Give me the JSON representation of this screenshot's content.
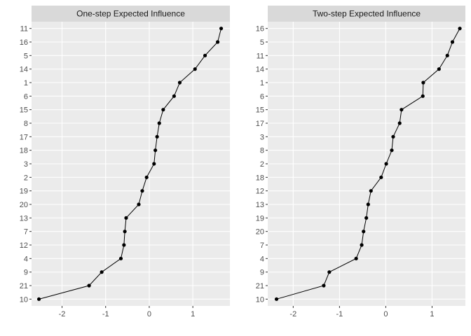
{
  "chart_data": [
    {
      "type": "line",
      "title": "One-step Expected Influence",
      "xlabel": "",
      "ylabel": "",
      "xlim": [
        -2.7,
        1.85
      ],
      "xticks": [
        -2,
        -1,
        0,
        1
      ],
      "grid": true,
      "categories": [
        "11",
        "16",
        "5",
        "14",
        "1",
        "6",
        "15",
        "8",
        "17",
        "18",
        "3",
        "2",
        "19",
        "20",
        "13",
        "7",
        "12",
        "4",
        "9",
        "21",
        "10"
      ],
      "values": [
        1.65,
        1.57,
        1.28,
        1.05,
        0.7,
        0.57,
        0.32,
        0.23,
        0.18,
        0.14,
        0.11,
        -0.06,
        -0.16,
        -0.24,
        -0.53,
        -0.56,
        -0.58,
        -0.65,
        -1.09,
        -1.38,
        -2.53
      ]
    },
    {
      "type": "line",
      "title": "Two-step Expected Influence",
      "xlabel": "",
      "ylabel": "",
      "xlim": [
        -2.55,
        1.72
      ],
      "xticks": [
        -2,
        -1,
        0,
        1
      ],
      "grid": true,
      "categories": [
        "16",
        "5",
        "11",
        "14",
        "1",
        "6",
        "15",
        "17",
        "3",
        "8",
        "2",
        "18",
        "12",
        "13",
        "19",
        "20",
        "7",
        "4",
        "9",
        "21",
        "10"
      ],
      "values": [
        1.6,
        1.44,
        1.33,
        1.15,
        0.81,
        0.8,
        0.34,
        0.3,
        0.16,
        0.13,
        0.01,
        -0.1,
        -0.32,
        -0.38,
        -0.42,
        -0.48,
        -0.52,
        -0.64,
        -1.22,
        -1.34,
        -2.36
      ]
    }
  ]
}
